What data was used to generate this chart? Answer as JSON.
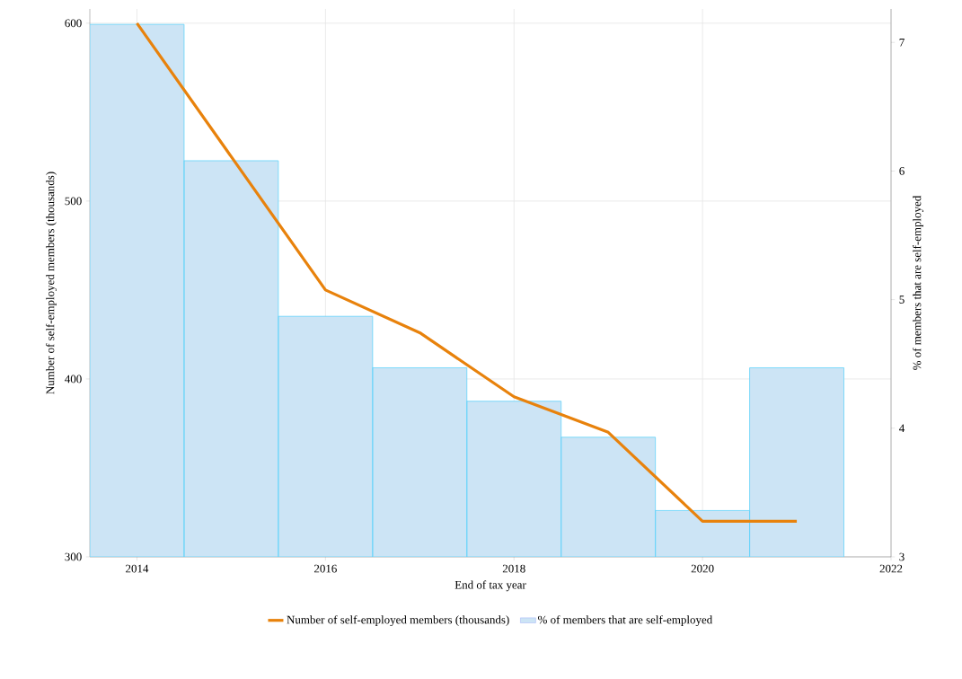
{
  "chart_data": {
    "type": "bar",
    "xlabel": "End of tax year",
    "ylabel": "Number of self-employed members (thousands)",
    "y2label": "% of members that are self-employed",
    "x": [
      2014,
      2015,
      2016,
      2017,
      2018,
      2019,
      2020,
      2021
    ],
    "series": [
      {
        "name": "Number of self-employed members (thousands)",
        "type": "line",
        "axis": "y",
        "color": "#e8820c",
        "values": [
          600,
          525,
          450,
          426,
          390,
          370,
          320,
          320
        ]
      },
      {
        "name": "% of members that are self-employed",
        "axis": "y2",
        "color": "#cce4f5",
        "values": [
          7.14,
          6.08,
          4.87,
          4.47,
          4.21,
          3.93,
          3.36,
          4.47
        ]
      }
    ],
    "xlim": [
      2013.5,
      2022
    ],
    "xticks": [
      2014,
      2016,
      2018,
      2020,
      2022
    ],
    "ylim": [
      300,
      608
    ],
    "yticks": [
      300,
      400,
      500,
      600
    ],
    "y2lim": [
      3,
      7.26
    ],
    "y2ticks": [
      3,
      4,
      5,
      6,
      7
    ],
    "grid": true,
    "legend": "bottom"
  }
}
